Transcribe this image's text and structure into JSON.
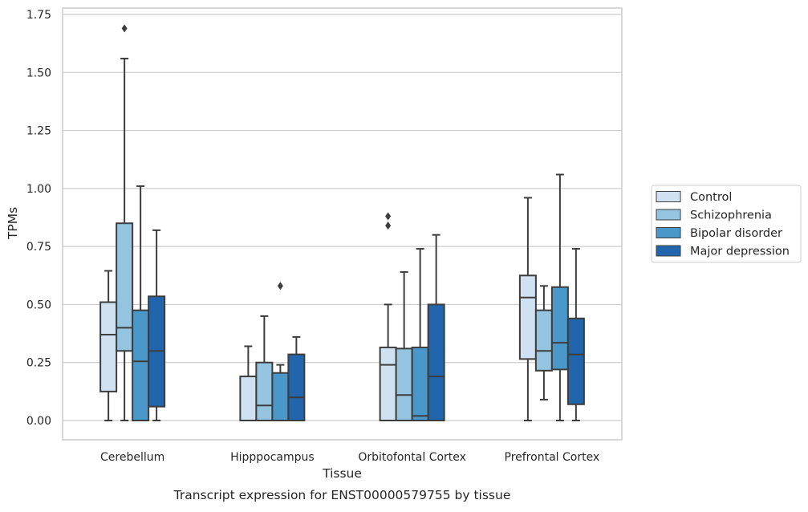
{
  "chart_data": {
    "type": "box",
    "caption": "Transcript expression for ENST00000579755 by tissue",
    "xlabel": "Tissue",
    "ylabel": "TPMs",
    "ylim": [
      -0.08,
      1.78
    ],
    "yticks": [
      0.0,
      0.25,
      0.5,
      0.75,
      1.0,
      1.25,
      1.5,
      1.75
    ],
    "ytick_labels": [
      "0.00",
      "0.25",
      "0.50",
      "0.75",
      "1.00",
      "1.25",
      "1.50",
      "1.75"
    ],
    "grid": "horizontal",
    "legend_position": "right",
    "categories": [
      "Cerebellum",
      "Hipppocampus",
      "Orbitofontal Cortex",
      "Prefrontal Cortex"
    ],
    "series": [
      {
        "name": "Control",
        "color": "#d0e1f2",
        "boxes": [
          {
            "whislo": 0.0,
            "q1": 0.125,
            "med": 0.37,
            "q3": 0.51,
            "whishi": 0.645,
            "fliers": []
          },
          {
            "whislo": 0.0,
            "q1": 0.0,
            "med": 0.0,
            "q3": 0.19,
            "whishi": 0.32,
            "fliers": []
          },
          {
            "whislo": 0.0,
            "q1": 0.0,
            "med": 0.24,
            "q3": 0.315,
            "whishi": 0.5,
            "fliers": [
              0.84,
              0.88
            ]
          },
          {
            "whislo": 0.0,
            "q1": 0.265,
            "med": 0.53,
            "q3": 0.625,
            "whishi": 0.96,
            "fliers": []
          }
        ]
      },
      {
        "name": "Schizophrenia",
        "color": "#94c4df",
        "boxes": [
          {
            "whislo": 0.0,
            "q1": 0.3,
            "med": 0.4,
            "q3": 0.85,
            "whishi": 1.56,
            "fliers": [
              1.69
            ]
          },
          {
            "whislo": 0.0,
            "q1": 0.0,
            "med": 0.065,
            "q3": 0.25,
            "whishi": 0.45,
            "fliers": []
          },
          {
            "whislo": 0.0,
            "q1": 0.0,
            "med": 0.11,
            "q3": 0.31,
            "whishi": 0.64,
            "fliers": []
          },
          {
            "whislo": 0.09,
            "q1": 0.215,
            "med": 0.3,
            "q3": 0.475,
            "whishi": 0.58,
            "fliers": []
          }
        ]
      },
      {
        "name": "Bipolar disorder",
        "color": "#4a98c9",
        "boxes": [
          {
            "whislo": 0.0,
            "q1": 0.0,
            "med": 0.255,
            "q3": 0.475,
            "whishi": 1.01,
            "fliers": []
          },
          {
            "whislo": 0.0,
            "q1": 0.0,
            "med": 0.0,
            "q3": 0.205,
            "whishi": 0.24,
            "fliers": [
              0.58
            ]
          },
          {
            "whislo": 0.0,
            "q1": 0.0,
            "med": 0.02,
            "q3": 0.315,
            "whishi": 0.74,
            "fliers": []
          },
          {
            "whislo": 0.0,
            "q1": 0.22,
            "med": 0.335,
            "q3": 0.575,
            "whishi": 1.06,
            "fliers": []
          }
        ]
      },
      {
        "name": "Major depression",
        "color": "#2166ac",
        "boxes": [
          {
            "whislo": 0.0,
            "q1": 0.06,
            "med": 0.3,
            "q3": 0.535,
            "whishi": 0.82,
            "fliers": []
          },
          {
            "whislo": 0.0,
            "q1": 0.0,
            "med": 0.1,
            "q3": 0.285,
            "whishi": 0.36,
            "fliers": []
          },
          {
            "whislo": 0.0,
            "q1": 0.0,
            "med": 0.19,
            "q3": 0.5,
            "whishi": 0.8,
            "fliers": []
          },
          {
            "whislo": 0.0,
            "q1": 0.07,
            "med": 0.285,
            "q3": 0.44,
            "whishi": 0.74,
            "fliers": []
          }
        ]
      }
    ],
    "styles": {
      "edge_color": "#3d3d3d",
      "grid_color": "#cccccc",
      "frame_color": "#cccccc",
      "text_color": "#262626"
    }
  }
}
